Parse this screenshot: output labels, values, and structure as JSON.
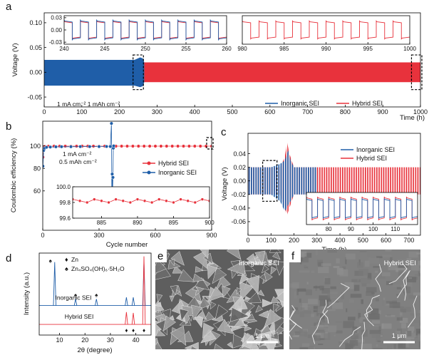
{
  "chart_data": [
    {
      "type": "oscillation",
      "panel": "a",
      "xlabel": "Time (h)",
      "ylabel": "Voltage (V)",
      "xlim": [
        0,
        1000
      ],
      "xticks": [
        0,
        100,
        200,
        300,
        400,
        500,
        600,
        700,
        800,
        900,
        1000
      ],
      "ylim": [
        -0.07,
        0.12
      ],
      "yticks": [
        -0.05,
        {
          "value": 0,
          "label": "0.00"
        },
        0.05,
        {
          "value": 0.1,
          "label": "0.10"
        }
      ],
      "annotation": "1 mA cm⁻² 1 mAh cm⁻²",
      "series": [
        {
          "name": "Inorganic SEI",
          "color": "#1f5ea8",
          "x": [
            0,
            240,
            255,
            262,
            266
          ],
          "upper": [
            0.025,
            0.025,
            0.03,
            0.028,
            0.02
          ],
          "lower": [
            -0.027,
            -0.027,
            -0.03,
            -0.028,
            -0.02
          ]
        },
        {
          "name": "Hybrid SEI",
          "color": "#e8323c",
          "x": [
            266,
            1000
          ],
          "upper": [
            0.02,
            0.02
          ],
          "lower": [
            -0.02,
            -0.02
          ]
        }
      ],
      "insets": [
        {
          "type": "square_wave",
          "xlim": [
            240,
            260
          ],
          "xticks": [
            240,
            245,
            250,
            255,
            260
          ],
          "ylim": [
            -0.035,
            0.035
          ],
          "yticks": [
            -0.03,
            {
              "value": 0,
              "label": "0.00"
            },
            0.03
          ],
          "series": [
            {
              "color": "#e8323c",
              "period": 2,
              "amplitude": 0.02
            },
            {
              "color": "#1f5ea8",
              "period": 2,
              "amplitude": 0.022
            }
          ]
        },
        {
          "type": "square_wave",
          "xlim": [
            980,
            1000
          ],
          "xticks": [
            980,
            985,
            990,
            995,
            1000
          ],
          "ylim": [
            -0.035,
            0.035
          ],
          "series": [
            {
              "color": "#e8323c",
              "period": 2,
              "amplitude": 0.02
            }
          ]
        }
      ]
    },
    {
      "type": "scatter",
      "panel": "b",
      "xlabel": "Cycle number",
      "ylabel": "Coulombic efficiency (%)",
      "xlim": [
        0,
        900
      ],
      "xticks": [
        0,
        300,
        600,
        900
      ],
      "ylim": [
        25,
        122
      ],
      "yticks": [
        60,
        80,
        100
      ],
      "annotation": [
        "1 mA cm⁻²",
        "0.5 mAh cm⁻²"
      ],
      "series": [
        {
          "name": "Hybrid SEI",
          "color": "#e8323c",
          "x": [
            1,
            5,
            10,
            30,
            60,
            90,
            120,
            150,
            180,
            210,
            240,
            270,
            300,
            330,
            360,
            390,
            420,
            450,
            480,
            510,
            540,
            570,
            600,
            630,
            660,
            690,
            720,
            750,
            780,
            810,
            840,
            870,
            900
          ],
          "values": [
            90,
            98,
            99.5,
            99.7,
            99.8,
            99.8,
            99.8,
            99.8,
            99.8,
            99.8,
            99.8,
            99.8,
            99.8,
            99.8,
            99.8,
            99.8,
            99.8,
            99.8,
            99.8,
            99.8,
            99.8,
            99.8,
            99.8,
            99.8,
            99.8,
            99.8,
            99.8,
            99.8,
            99.8,
            99.8,
            99.8,
            99.8,
            99.8
          ]
        },
        {
          "name": "Inorganic SEI",
          "color": "#1f5ea8",
          "x": [
            1,
            5,
            10,
            20,
            40,
            70,
            100,
            150,
            200,
            250,
            300,
            340,
            360,
            366,
            368,
            370,
            372,
            374,
            376,
            378
          ],
          "values": [
            82,
            96,
            98,
            98.8,
            99,
            99.2,
            99.3,
            99.3,
            99.4,
            99.4,
            99.4,
            99.5,
            99.5,
            120,
            57,
            75,
            60,
            72,
            98,
            100
          ]
        }
      ],
      "insets": [
        {
          "type": "scatter",
          "xlim": [
            881,
            900
          ],
          "xticks": [
            885,
            890,
            895,
            900
          ],
          "ylim": [
            99.6,
            100
          ],
          "yticks": [
            99.6,
            99.8,
            {
              "value": 100,
              "label": "100.0"
            }
          ],
          "series": [
            {
              "color": "#e8323c",
              "x": [
                881,
                882,
                883,
                884,
                885,
                886,
                887,
                888,
                889,
                890,
                891,
                892,
                893,
                894,
                895,
                896,
                897,
                898,
                899,
                900
              ],
              "values": [
                99.84,
                99.82,
                99.8,
                99.84,
                99.82,
                99.8,
                99.84,
                99.82,
                99.8,
                99.84,
                99.82,
                99.8,
                99.84,
                99.82,
                99.8,
                99.84,
                99.82,
                99.8,
                99.84,
                99.82
              ]
            }
          ]
        }
      ]
    },
    {
      "type": "oscillation",
      "panel": "c",
      "xlabel": "Time (h)",
      "ylabel": "Voltage (V)",
      "xlim": [
        0,
        750
      ],
      "xticks": [
        0,
        100,
        200,
        300,
        400,
        500,
        600,
        700
      ],
      "ylim": [
        -0.08,
        0.07
      ],
      "yticks": [
        -0.06,
        -0.04,
        -0.02,
        {
          "value": 0,
          "label": "0.00"
        },
        0.02,
        0.04
      ],
      "series": [
        {
          "name": "Inorganic SEI",
          "color": "#1f5ea8",
          "x": [
            0,
            100,
            140,
            160,
            175,
            185,
            200,
            300
          ],
          "upper": [
            0.02,
            0.02,
            0.025,
            0.03,
            0.045,
            0.03,
            0.02,
            0.02
          ],
          "lower": [
            -0.02,
            -0.02,
            -0.03,
            -0.045,
            -0.035,
            -0.03,
            -0.02,
            -0.02
          ]
        },
        {
          "name": "Hybrid SEI",
          "color": "#e8323c",
          "x": [
            0,
            140,
            160,
            170,
            180,
            200,
            750
          ],
          "upper": [
            0.02,
            0.02,
            0.035,
            0.057,
            0.04,
            0.02,
            0.02
          ],
          "lower": [
            -0.02,
            -0.02,
            -0.04,
            -0.05,
            -0.04,
            -0.02,
            -0.02
          ]
        }
      ],
      "insets": [
        {
          "type": "square_wave",
          "xlim": [
            70,
            120
          ],
          "xticks": [
            80,
            90,
            100,
            110
          ],
          "ylim": [
            -0.03,
            0.03
          ],
          "series": [
            {
              "color": "#e8323c",
              "period": 5,
              "amplitude": 0.02
            },
            {
              "color": "#1f5ea8",
              "period": 5,
              "amplitude": 0.017
            }
          ]
        }
      ]
    },
    {
      "type": "xrd",
      "panel": "d",
      "xlabel": "2θ (degree)",
      "ylabel": "Intensity (a.u.)",
      "xlim": [
        2,
        46
      ],
      "xticks": [
        10,
        20,
        30,
        40
      ],
      "ylim": [
        0,
        100
      ],
      "series": [
        {
          "name": "Inorganic SEI",
          "color": "#1f5ea8",
          "baseline": 36,
          "peaks": [
            8.1,
            16.3,
            24.5,
            36.3,
            39,
            43.2
          ],
          "heights": [
            53,
            8,
            8,
            10,
            10,
            53
          ]
        },
        {
          "name": "Hybrid SEI",
          "color": "#e8323c",
          "baseline": 13,
          "peaks": [
            36.3,
            39,
            43.2
          ],
          "heights": [
            15,
            14,
            83
          ]
        }
      ],
      "phases": [
        {
          "name": "Zn",
          "symbol": "♦",
          "color": "#e8323c",
          "positions": [
            36.3,
            39,
            43.2
          ]
        },
        {
          "name": "Zn₄SO₄(OH)₆·5H₂O",
          "symbol": "♠",
          "color": "#1d3557",
          "positions": [
            8.1,
            16.3,
            24.5
          ]
        }
      ]
    }
  ],
  "images": [
    {
      "panel": "e",
      "label": "Inorganic SEI",
      "scale_bar": "1 μm"
    },
    {
      "panel": "f",
      "label": "Hybrid SEI",
      "scale_bar": "1 μm"
    }
  ]
}
